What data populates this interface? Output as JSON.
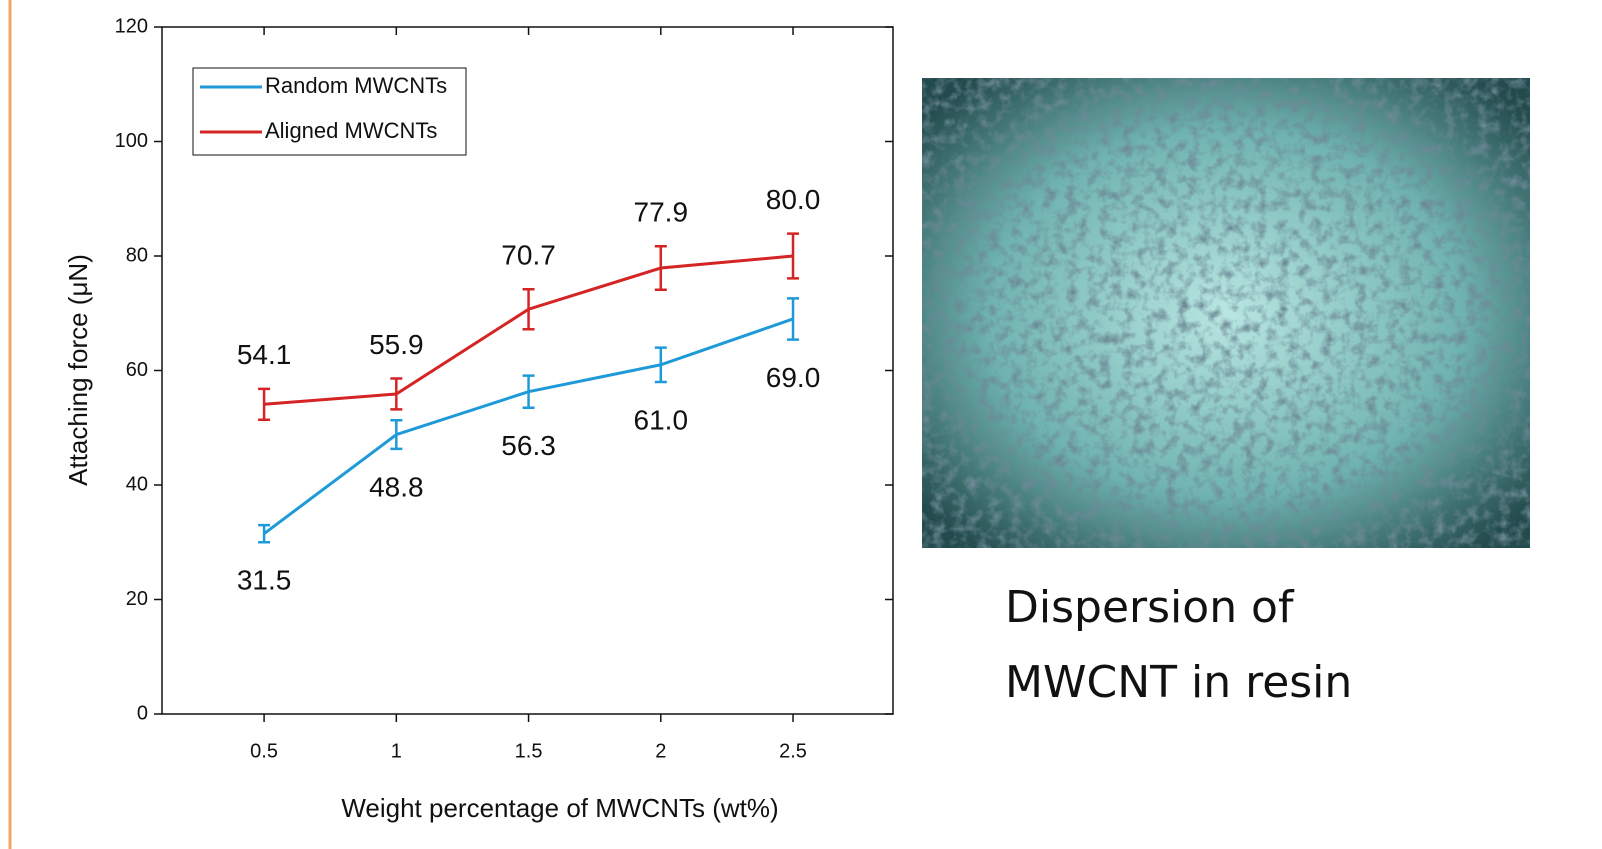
{
  "chart_data": {
    "type": "line",
    "y_label": "Attaching force (μN)",
    "x_label": "Weight percentage of MWCNTs (wt%)",
    "x": [
      0.5,
      1,
      1.5,
      2,
      2.5
    ],
    "xlim": [
      0.114,
      2.878
    ],
    "xticks": [
      0.5,
      1,
      1.5,
      2,
      2.5
    ],
    "ylim": [
      0,
      120
    ],
    "yticks": [
      0,
      20,
      40,
      60,
      80,
      100,
      120
    ],
    "legend": "upper left",
    "series": [
      {
        "name": "Random MWCNTs",
        "color": "#1f9ad8",
        "values": [
          31.5,
          48.8,
          56.3,
          61.0,
          69.0
        ],
        "value_labels": [
          "31.5",
          "48.8",
          "56.3",
          "61.0",
          "69.0"
        ],
        "errors": [
          1.5,
          2.5,
          2.8,
          3.0,
          3.6
        ]
      },
      {
        "name": "Aligned MWCNTs",
        "color": "#d42424",
        "values": [
          54.1,
          55.9,
          70.7,
          77.9,
          80.0
        ],
        "value_labels": [
          "54.1",
          "55.9",
          "70.7",
          "77.9",
          "80.0"
        ],
        "errors": [
          2.7,
          2.7,
          3.5,
          3.8,
          3.9
        ]
      }
    ]
  },
  "image": {
    "caption": [
      "Dispersion of",
      "MWCNT in resin"
    ]
  }
}
